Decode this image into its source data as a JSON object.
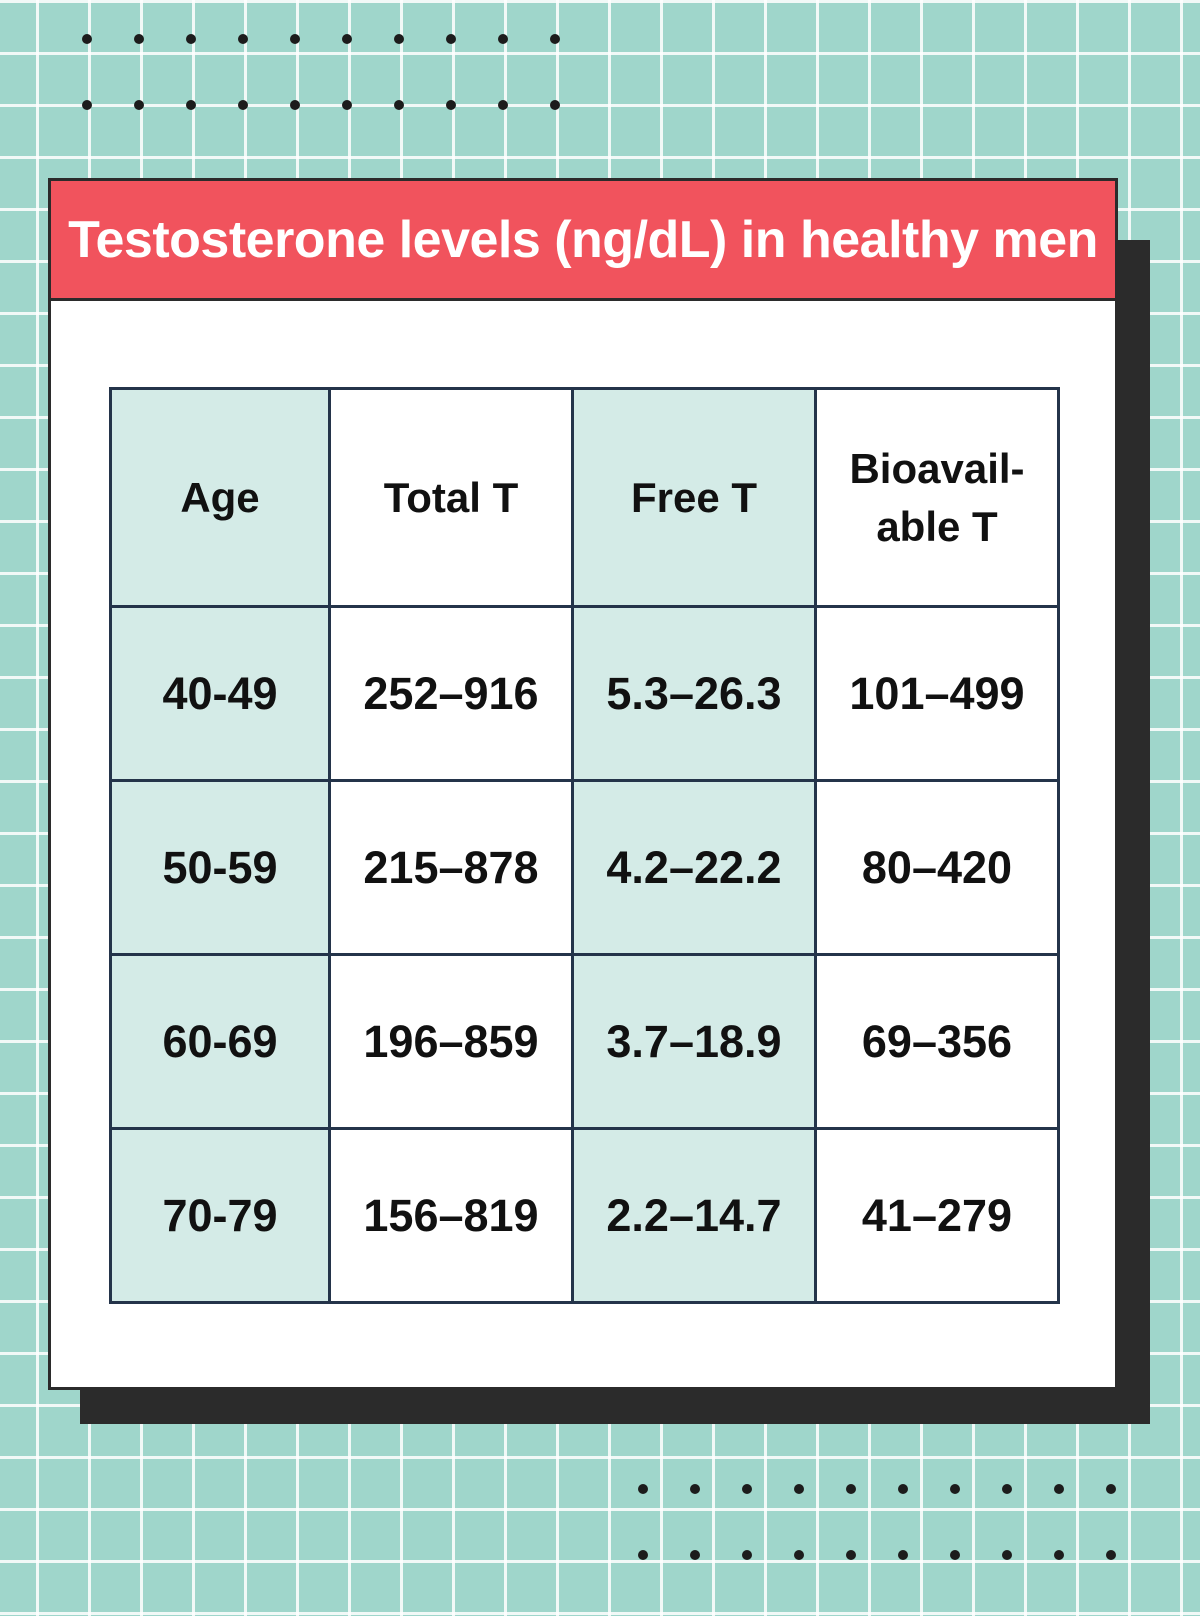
{
  "title": "Testosterone levels (ng/dL) in healthy men",
  "colors": {
    "background": "#9fd6cb",
    "header": "#f1535d",
    "shaded_cell": "#d4ebe7",
    "border": "#24344a"
  },
  "table": {
    "headers": [
      "Age",
      "Total T",
      "Free T",
      "Bioavail-\nable T"
    ],
    "rows": [
      [
        "40-49",
        "252–916",
        "5.3–26.3",
        "101–499"
      ],
      [
        "50-59",
        "215–878",
        "4.2–22.2",
        "80–420"
      ],
      [
        "60-69",
        "196–859",
        "3.7–18.9",
        "69–356"
      ],
      [
        "70-79",
        "156–819",
        "2.2–14.7",
        "41–279"
      ]
    ]
  }
}
